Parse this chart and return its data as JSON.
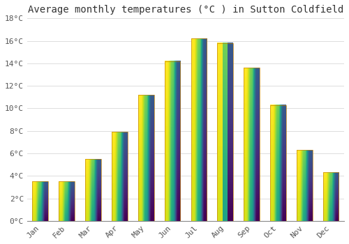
{
  "title": "Average monthly temperatures (°C ) in Sutton Coldfield",
  "months": [
    "Jan",
    "Feb",
    "Mar",
    "Apr",
    "May",
    "Jun",
    "Jul",
    "Aug",
    "Sep",
    "Oct",
    "Nov",
    "Dec"
  ],
  "temperatures": [
    3.5,
    3.5,
    5.5,
    7.9,
    11.2,
    14.2,
    16.2,
    15.8,
    13.6,
    10.3,
    6.3,
    4.3
  ],
  "bar_color_bottom": "#F0A020",
  "bar_color_top": "#FFD060",
  "bar_edge_color": "#C8860A",
  "ylim": [
    0,
    18
  ],
  "yticks": [
    0,
    2,
    4,
    6,
    8,
    10,
    12,
    14,
    16,
    18
  ],
  "background_color": "#FFFFFF",
  "grid_color": "#DDDDDD",
  "title_fontsize": 10,
  "tick_fontsize": 8,
  "font_family": "monospace",
  "bar_width": 0.6
}
